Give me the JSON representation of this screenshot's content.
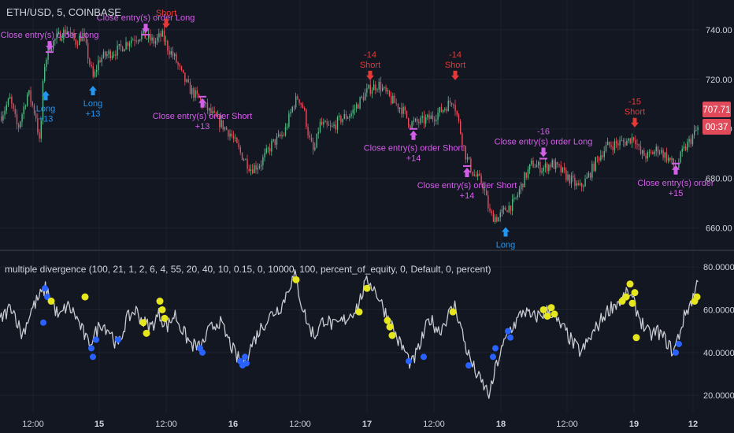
{
  "symbol_title": "ETH/USD, 5, COINBASE",
  "indicator_title": "multiple divergence  (100, 21, 1, 2, 6, 4, 55, 20, 40, 10, 0.15, 0, 10000, 100, percent_of_equity, 0, Default, 0, percent)",
  "price_label": "707.71",
  "countdown_label": "00:37",
  "colors": {
    "background": "#131722",
    "grid": "#1e2230",
    "axis_text": "#d1d4dc",
    "candle_up": "#53b987",
    "candle_down": "#eb4d5c",
    "indicator_line": "#c8cad0",
    "bull_dot": "#2962ff",
    "bear_dot": "#e6e61e",
    "long_marker": "#2196f3",
    "short_marker": "#e53935",
    "close_marker": "#d35fe8",
    "price_tag": "#e04a5a"
  },
  "time_axis": {
    "labels": [
      "12:00",
      "15",
      "12:00",
      "16",
      "12:00",
      "17",
      "12:00",
      "18",
      "12:00",
      "19",
      "12"
    ]
  },
  "chart_data": [
    {
      "type": "candlestick",
      "title": "ETH/USD, 5, COINBASE",
      "ylim": [
        651,
        752
      ],
      "yticks": [
        660.0,
        680.0,
        700.0,
        720.0,
        740.0
      ],
      "grid": true,
      "current_price": 707.71,
      "path": [
        [
          0,
          705
        ],
        [
          12,
          712
        ],
        [
          22,
          700
        ],
        [
          35,
          715
        ],
        [
          45,
          705
        ],
        [
          50,
          693
        ],
        [
          55,
          725
        ],
        [
          62,
          733
        ],
        [
          72,
          737
        ],
        [
          85,
          740
        ],
        [
          95,
          735
        ],
        [
          105,
          738
        ],
        [
          112,
          728
        ],
        [
          118,
          720
        ],
        [
          125,
          728
        ],
        [
          135,
          730
        ],
        [
          150,
          732
        ],
        [
          165,
          736
        ],
        [
          180,
          738
        ],
        [
          195,
          735
        ],
        [
          205,
          738
        ],
        [
          212,
          733
        ],
        [
          222,
          728
        ],
        [
          230,
          722
        ],
        [
          240,
          716
        ],
        [
          252,
          712
        ],
        [
          265,
          707
        ],
        [
          280,
          702
        ],
        [
          292,
          698
        ],
        [
          305,
          690
        ],
        [
          318,
          684
        ],
        [
          330,
          686
        ],
        [
          345,
          694
        ],
        [
          360,
          698
        ],
        [
          372,
          710
        ],
        [
          378,
          713
        ],
        [
          385,
          708
        ],
        [
          392,
          696
        ],
        [
          398,
          690
        ],
        [
          405,
          702
        ],
        [
          420,
          700
        ],
        [
          432,
          704
        ],
        [
          445,
          706
        ],
        [
          458,
          712
        ],
        [
          468,
          716
        ],
        [
          480,
          718
        ],
        [
          495,
          712
        ],
        [
          510,
          708
        ],
        [
          520,
          702
        ],
        [
          535,
          703
        ],
        [
          550,
          705
        ],
        [
          562,
          708
        ],
        [
          575,
          712
        ],
        [
          582,
          702
        ],
        [
          590,
          690
        ],
        [
          600,
          682
        ],
        [
          612,
          678
        ],
        [
          622,
          665
        ],
        [
          632,
          664
        ],
        [
          642,
          668
        ],
        [
          652,
          670
        ],
        [
          665,
          680
        ],
        [
          675,
          686
        ],
        [
          688,
          684
        ],
        [
          700,
          686
        ],
        [
          712,
          683
        ],
        [
          722,
          680
        ],
        [
          735,
          676
        ],
        [
          745,
          680
        ],
        [
          758,
          688
        ],
        [
          770,
          693
        ],
        [
          782,
          694
        ],
        [
          795,
          695
        ],
        [
          805,
          697
        ],
        [
          812,
          690
        ],
        [
          822,
          689
        ],
        [
          835,
          692
        ],
        [
          848,
          688
        ],
        [
          858,
          684
        ],
        [
          865,
          690
        ],
        [
          875,
          695
        ],
        [
          885,
          700
        ],
        [
          890,
          704
        ]
      ],
      "annotations": [
        {
          "kind": "close",
          "lines": [
            "Close entry(s) order Long"
          ],
          "x": 63,
          "y": 731,
          "dir": "down"
        },
        {
          "kind": "long",
          "lines": [
            "Long",
            "+13"
          ],
          "x": 58,
          "y": 716,
          "dir": "up"
        },
        {
          "kind": "long",
          "lines": [
            "Long",
            "+13"
          ],
          "x": 118,
          "y": 718,
          "dir": "up"
        },
        {
          "kind": "close",
          "lines": [
            "Close entry(s) order Long"
          ],
          "x": 185,
          "y": 738,
          "dir": "down"
        },
        {
          "kind": "short",
          "lines": [
            "Short"
          ],
          "x": 211,
          "y": 740,
          "dir": "down"
        },
        {
          "kind": "close",
          "lines": [
            "Close entry(s) order Short",
            "+13"
          ],
          "x": 257,
          "y": 713,
          "dir": "up"
        },
        {
          "kind": "short",
          "lines": [
            "-14",
            "Short"
          ],
          "x": 470,
          "y": 719,
          "dir": "down"
        },
        {
          "kind": "close",
          "lines": [
            "Close entry(s) order Short",
            "+14"
          ],
          "x": 525,
          "y": 700,
          "dir": "up"
        },
        {
          "kind": "short",
          "lines": [
            "-14",
            "Short"
          ],
          "x": 578,
          "y": 719,
          "dir": "down"
        },
        {
          "kind": "close",
          "lines": [
            "Close entry(s) order Short",
            "+14"
          ],
          "x": 593,
          "y": 685,
          "dir": "up"
        },
        {
          "kind": "long",
          "lines": [
            "Long"
          ],
          "x": 642,
          "y": 661,
          "dir": "up"
        },
        {
          "kind": "close",
          "lines": [
            "-16",
            "Close entry(s) order Long"
          ],
          "x": 690,
          "y": 688,
          "dir": "down"
        },
        {
          "kind": "short",
          "lines": [
            "-15",
            "Short"
          ],
          "x": 806,
          "y": 700,
          "dir": "down"
        },
        {
          "kind": "close",
          "lines": [
            "Close entry(s) order",
            "+15"
          ],
          "x": 858,
          "y": 686,
          "dir": "up"
        }
      ]
    },
    {
      "type": "line",
      "title": "multiple divergence  (100, 21, 1, 2, 6, 4, 55, 20, 40, 10, 0.15, 0, 10000, 100, percent_of_equity, 0, Default, 0, percent)",
      "ylim": [
        12,
        87
      ],
      "yticks": [
        20.0,
        40.0,
        60.0,
        80.0
      ],
      "grid": true,
      "path": [
        [
          0,
          55
        ],
        [
          15,
          62
        ],
        [
          28,
          48
        ],
        [
          40,
          60
        ],
        [
          50,
          66
        ],
        [
          58,
          70
        ],
        [
          66,
          64
        ],
        [
          75,
          56
        ],
        [
          85,
          62
        ],
        [
          95,
          58
        ],
        [
          105,
          50
        ],
        [
          112,
          44
        ],
        [
          120,
          48
        ],
        [
          128,
          54
        ],
        [
          140,
          50
        ],
        [
          150,
          42
        ],
        [
          160,
          55
        ],
        [
          172,
          60
        ],
        [
          182,
          54
        ],
        [
          192,
          52
        ],
        [
          202,
          58
        ],
        [
          212,
          52
        ],
        [
          222,
          58
        ],
        [
          232,
          50
        ],
        [
          242,
          44
        ],
        [
          255,
          42
        ],
        [
          265,
          50
        ],
        [
          278,
          55
        ],
        [
          290,
          46
        ],
        [
          300,
          38
        ],
        [
          310,
          35
        ],
        [
          320,
          44
        ],
        [
          332,
          52
        ],
        [
          345,
          58
        ],
        [
          358,
          62
        ],
        [
          368,
          72
        ],
        [
          375,
          76
        ],
        [
          382,
          64
        ],
        [
          392,
          52
        ],
        [
          400,
          48
        ],
        [
          412,
          56
        ],
        [
          425,
          52
        ],
        [
          440,
          56
        ],
        [
          455,
          62
        ],
        [
          462,
          70
        ],
        [
          468,
          74
        ],
        [
          478,
          68
        ],
        [
          488,
          60
        ],
        [
          496,
          54
        ],
        [
          505,
          46
        ],
        [
          515,
          40
        ],
        [
          522,
          34
        ],
        [
          532,
          42
        ],
        [
          545,
          56
        ],
        [
          558,
          50
        ],
        [
          570,
          58
        ],
        [
          578,
          62
        ],
        [
          585,
          52
        ],
        [
          592,
          42
        ],
        [
          600,
          34
        ],
        [
          608,
          28
        ],
        [
          615,
          24
        ],
        [
          622,
          20
        ],
        [
          630,
          34
        ],
        [
          638,
          42
        ],
        [
          646,
          50
        ],
        [
          655,
          54
        ],
        [
          665,
          60
        ],
        [
          675,
          56
        ],
        [
          688,
          58
        ],
        [
          698,
          60
        ],
        [
          708,
          54
        ],
        [
          718,
          50
        ],
        [
          728,
          44
        ],
        [
          738,
          40
        ],
        [
          748,
          46
        ],
        [
          758,
          52
        ],
        [
          768,
          58
        ],
        [
          778,
          62
        ],
        [
          788,
          64
        ],
        [
          798,
          68
        ],
        [
          806,
          62
        ],
        [
          815,
          54
        ],
        [
          825,
          48
        ],
        [
          835,
          50
        ],
        [
          845,
          46
        ],
        [
          855,
          40
        ],
        [
          862,
          48
        ],
        [
          870,
          58
        ],
        [
          878,
          64
        ],
        [
          884,
          70
        ],
        [
          888,
          80
        ]
      ],
      "bull_divergence_points": [
        [
          57,
          70
        ],
        [
          60,
          66
        ],
        [
          55,
          54
        ],
        [
          116,
          42
        ],
        [
          118,
          38
        ],
        [
          122,
          46
        ],
        [
          150,
          46
        ],
        [
          254,
          42
        ],
        [
          257,
          40
        ],
        [
          305,
          36
        ],
        [
          308,
          34
        ],
        [
          311,
          38
        ],
        [
          313,
          35
        ],
        [
          519,
          36
        ],
        [
          538,
          38
        ],
        [
          595,
          34
        ],
        [
          626,
          38
        ],
        [
          629,
          42
        ],
        [
          645,
          50
        ],
        [
          648,
          47
        ],
        [
          858,
          40
        ],
        [
          862,
          44
        ]
      ],
      "bear_divergence_points": [
        [
          65,
          64
        ],
        [
          108,
          66
        ],
        [
          182,
          54
        ],
        [
          186,
          49
        ],
        [
          203,
          64
        ],
        [
          206,
          60
        ],
        [
          209,
          56
        ],
        [
          376,
          74
        ],
        [
          456,
          59
        ],
        [
          466,
          70
        ],
        [
          492,
          55
        ],
        [
          495,
          52
        ],
        [
          498,
          48
        ],
        [
          575,
          59
        ],
        [
          690,
          60
        ],
        [
          695,
          57
        ],
        [
          700,
          61
        ],
        [
          704,
          58
        ],
        [
          790,
          64
        ],
        [
          795,
          66
        ],
        [
          800,
          72
        ],
        [
          803,
          63
        ],
        [
          806,
          68
        ],
        [
          808,
          47
        ],
        [
          882,
          64
        ],
        [
          885,
          66
        ]
      ]
    }
  ]
}
